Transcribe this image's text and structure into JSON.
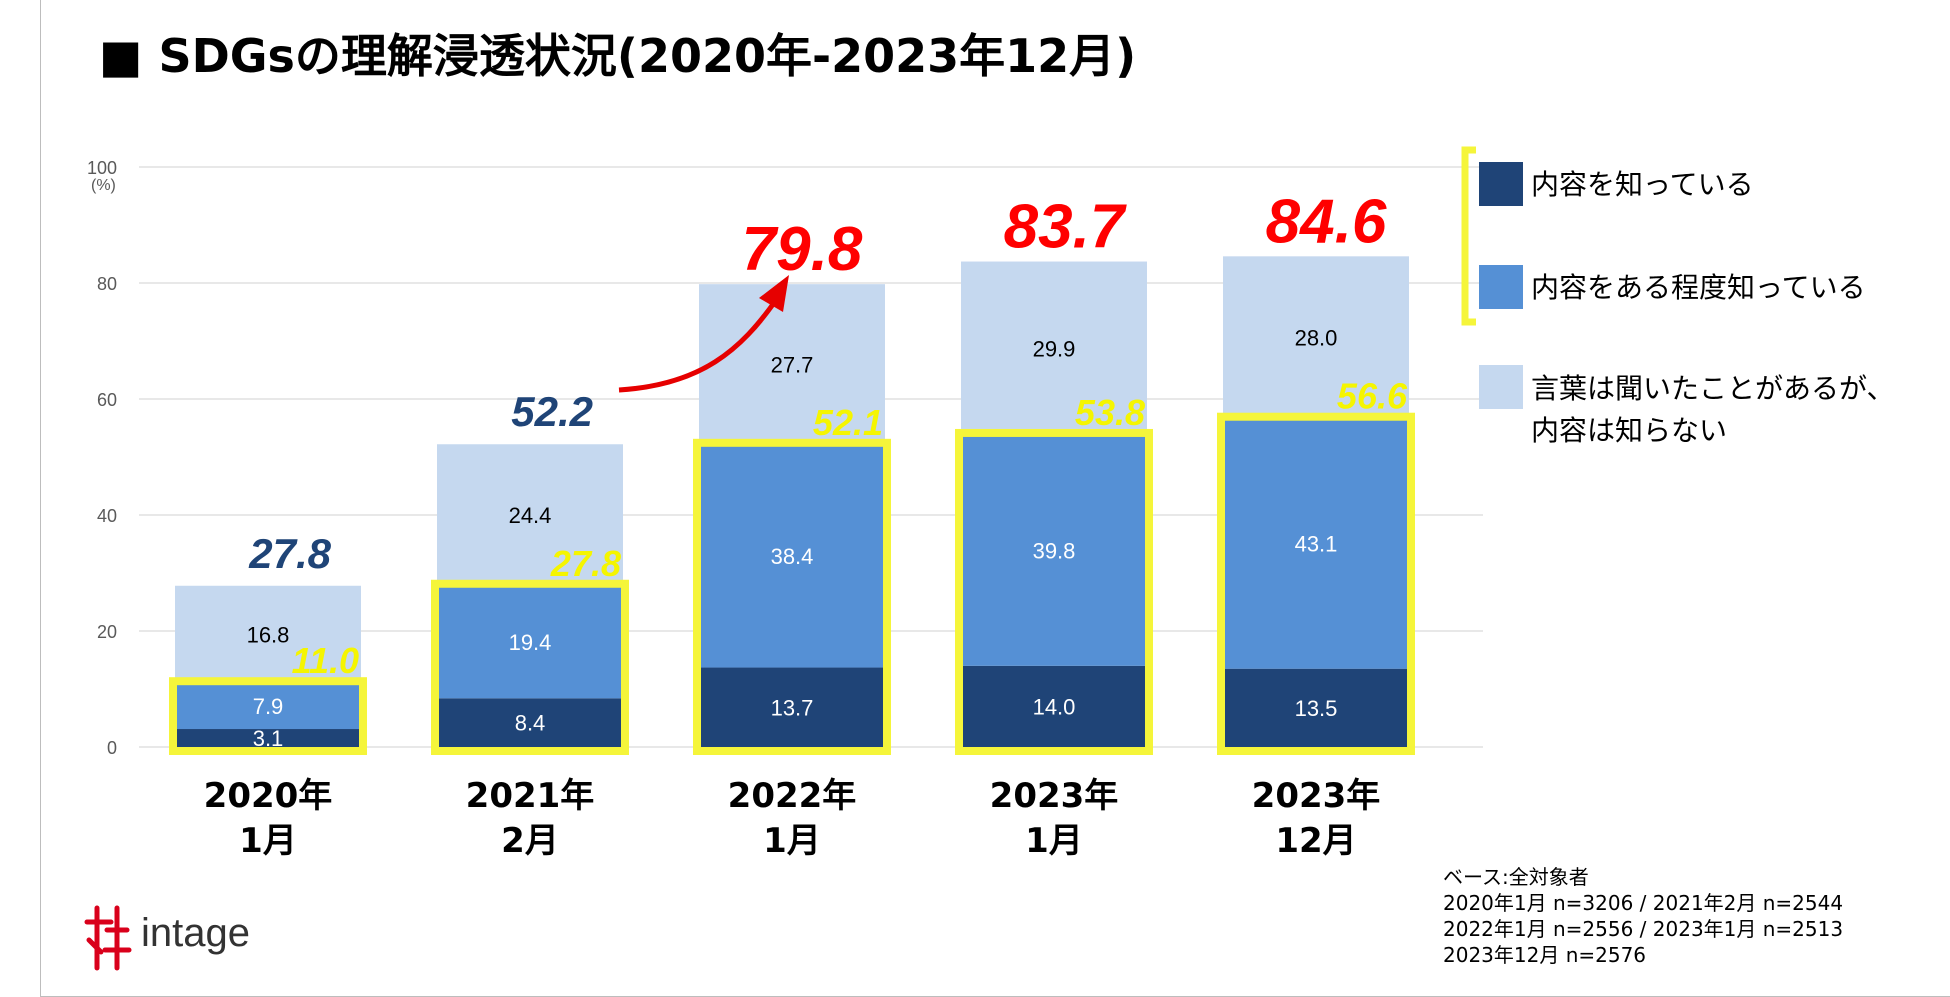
{
  "title": "■ SDGsの理解浸透状況(2020年-2023年12月)",
  "colors": {
    "dark": "#1f4477",
    "mid": "#5590d5",
    "light": "#c5d8ef",
    "highlight": "#f5f53a",
    "red": "#ff0000",
    "navy_text": "#1f4477"
  },
  "chart_data": {
    "type": "bar",
    "stacked": true,
    "ylim": [
      0,
      100
    ],
    "yticks": [
      0,
      20,
      40,
      60,
      80,
      100
    ],
    "ylabel": "(%)",
    "grid": true,
    "legend_position": "right",
    "categories": [
      [
        "2020年",
        "1月"
      ],
      [
        "2021年",
        "2月"
      ],
      [
        "2022年",
        "1月"
      ],
      [
        "2023年",
        "1月"
      ],
      [
        "2023年",
        "12月"
      ]
    ],
    "series": [
      {
        "name": "内容を知っている",
        "values": [
          3.1,
          8.4,
          13.7,
          14.0,
          13.5
        ]
      },
      {
        "name": "内容をある程度知っている",
        "values": [
          7.9,
          19.4,
          38.4,
          39.8,
          43.1
        ]
      },
      {
        "name": "言葉は聞いたことがあるが、内容は知らない",
        "values": [
          16.8,
          24.4,
          27.7,
          29.9,
          28.0
        ]
      }
    ],
    "totals": [
      "27.8",
      "52.2",
      "79.8",
      "83.7",
      "84.6"
    ],
    "cumulative_aware": [
      "11.0",
      "27.8",
      "52.1",
      "53.8",
      "56.6"
    ],
    "segment_labels": [
      [
        "3.1",
        "7.9",
        "16.8"
      ],
      [
        "8.4",
        "19.4",
        "24.4"
      ],
      [
        "13.7",
        "38.4",
        "27.7"
      ],
      [
        "14.0",
        "39.8",
        "29.9"
      ],
      [
        "13.5",
        "43.1",
        "28.0"
      ]
    ]
  },
  "legend": {
    "item1": "内容を知っている",
    "item2": "内容をある程度知っている",
    "item3_line1": "言葉は聞いたことがあるが、",
    "item3_line2": "内容は知らない"
  },
  "base_note": [
    "ベース:全対象者",
    "2020年1月 n=3206 / 2021年2月 n=2544",
    "2022年1月 n=2556 / 2023年1月 n=2513",
    "2023年12月 n=2576"
  ],
  "logo": {
    "text": "intage"
  }
}
